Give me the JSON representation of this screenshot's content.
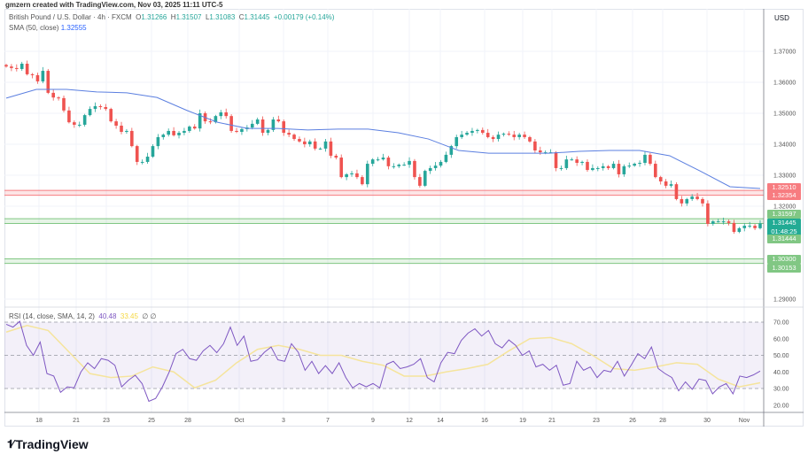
{
  "credit": "gmzern created with TradingView.com, Nov 03, 2025 11:11 UTC-5",
  "legend": {
    "symbol": "British Pound / U.S. Dollar · 4h · FXCM",
    "open_label": "O",
    "open": "1.31266",
    "high_label": "H",
    "high": "1.31507",
    "low_label": "L",
    "low": "1.31083",
    "close_label": "C",
    "close": "1.31445",
    "change": "+0.00179 (+0.14%)",
    "sma_label": "SMA (50, close)",
    "sma_value": "1.32555"
  },
  "rsi_legend": {
    "label": "RSI (14, close, SMA, 14, 2)",
    "rsi_value": "40.48",
    "ma_value": "33.45",
    "extra": "∅ ∅"
  },
  "currency": "USD",
  "price_tags": [
    {
      "text": "1.32510",
      "price": 1.3251,
      "color": "#f77c80"
    },
    {
      "text": "1.32354",
      "price": 1.32354,
      "color": "#f77c80"
    },
    {
      "text": "1.31597",
      "price": 1.31597,
      "color": "#81c784"
    },
    {
      "text": "1.31445",
      "price": 1.31445,
      "color": "#22ab94",
      "countdown": "01:48:25"
    },
    {
      "text": "1.31444",
      "price": 1.31444,
      "color": "#81c784"
    },
    {
      "text": "1.30300",
      "price": 1.303,
      "color": "#81c784"
    },
    {
      "text": "1.30153",
      "price": 1.30153,
      "color": "#81c784"
    }
  ],
  "footer": {
    "brand": "TradingView",
    "logo_mark": "17"
  },
  "colors": {
    "up": "#26a69a",
    "down": "#ef5350",
    "sma": "#5b7fe0",
    "rsi": "#7e57c2",
    "rsi_ma": "#f5e49c",
    "red_zone": "#f77c80",
    "green_zone": "#81c784"
  },
  "chart_data": [
    {
      "type": "candlestick",
      "title": "British Pound / U.S. Dollar · 4h · FXCM",
      "ylim": [
        1.287,
        1.375
      ],
      "yticks": [
        "1.37000",
        "1.36000",
        "1.35000",
        "1.34000",
        "1.33000",
        "1.32000",
        "1.29000"
      ],
      "ytick_values": [
        1.37,
        1.36,
        1.35,
        1.34,
        1.33,
        1.32,
        1.29
      ],
      "xtick_labels": [
        "18",
        "21",
        "23",
        "25",
        "28",
        "Oct",
        "3",
        "7",
        "9",
        "12",
        "14",
        "16",
        "19",
        "21",
        "23",
        "26",
        "28",
        "30",
        "Nov"
      ],
      "grid": true,
      "closes": [
        1.3651,
        1.3646,
        1.3643,
        1.366,
        1.3626,
        1.3623,
        1.3603,
        1.3637,
        1.3566,
        1.3551,
        1.3549,
        1.3509,
        1.3471,
        1.3463,
        1.3463,
        1.3494,
        1.3514,
        1.3523,
        1.352,
        1.3514,
        1.3474,
        1.346,
        1.344,
        1.3443,
        1.3394,
        1.3343,
        1.3343,
        1.336,
        1.3394,
        1.3423,
        1.3431,
        1.3443,
        1.3429,
        1.3437,
        1.3443,
        1.3457,
        1.3451,
        1.35,
        1.3474,
        1.3471,
        1.3491,
        1.3503,
        1.3491,
        1.3443,
        1.344,
        1.3449,
        1.3454,
        1.3466,
        1.348,
        1.3437,
        1.3446,
        1.348,
        1.3474,
        1.3437,
        1.3431,
        1.3417,
        1.3409,
        1.34,
        1.3409,
        1.3386,
        1.3386,
        1.3409,
        1.3363,
        1.3357,
        1.3294,
        1.3303,
        1.3306,
        1.3294,
        1.3271,
        1.3337,
        1.3351,
        1.3351,
        1.3357,
        1.3329,
        1.3329,
        1.3334,
        1.3334,
        1.3346,
        1.3294,
        1.3266,
        1.3314,
        1.3323,
        1.3331,
        1.3343,
        1.3366,
        1.3394,
        1.3423,
        1.3431,
        1.3437,
        1.3443,
        1.3446,
        1.3437,
        1.3423,
        1.3417,
        1.3431,
        1.3434,
        1.3431,
        1.3423,
        1.3431,
        1.3423,
        1.3409,
        1.338,
        1.3374,
        1.3374,
        1.3374,
        1.3323,
        1.3323,
        1.3351,
        1.3351,
        1.334,
        1.3343,
        1.3317,
        1.3323,
        1.3323,
        1.3329,
        1.3323,
        1.3337,
        1.3303,
        1.3329,
        1.3331,
        1.3337,
        1.334,
        1.3366,
        1.3337,
        1.3294,
        1.328,
        1.3266,
        1.3271,
        1.3223,
        1.3209,
        1.3223,
        1.3231,
        1.3223,
        1.3209,
        1.3143,
        1.3151,
        1.3151,
        1.3151,
        1.3146,
        1.3117,
        1.3129,
        1.3137,
        1.3137,
        1.3129,
        1.31445
      ],
      "sma": {
        "name": "SMA (50, close)",
        "values": [
          1.3549,
          1.3577,
          1.3577,
          1.3569,
          1.3566,
          1.3551,
          1.3509,
          1.3471,
          1.3451,
          1.3451,
          1.3446,
          1.3449,
          1.3449,
          1.3437,
          1.3417,
          1.338,
          1.3371,
          1.3371,
          1.3371,
          1.3377,
          1.338,
          1.338,
          1.3363,
          1.3314,
          1.3263,
          1.3257
        ]
      },
      "zones": [
        {
          "from": 1.32354,
          "to": 1.3251,
          "color": "#f77c80"
        },
        {
          "from": 1.31444,
          "to": 1.31597,
          "color": "#81c784"
        },
        {
          "from": 1.30153,
          "to": 1.303,
          "color": "#81c784"
        }
      ]
    },
    {
      "type": "line",
      "title": "RSI (14, close, SMA, 14, 2)",
      "ylim": [
        15,
        75
      ],
      "yticks": [
        "70.00",
        "60.00",
        "50.00",
        "40.00",
        "30.00",
        "20.00"
      ],
      "ytick_values": [
        70,
        60,
        50,
        40,
        30,
        20
      ],
      "bands": [
        30,
        50,
        70
      ],
      "series": [
        {
          "name": "RSI",
          "values": [
            68.7,
            67,
            70.5,
            56,
            50,
            58,
            39,
            37.5,
            27.7,
            31,
            30.4,
            40,
            45.5,
            42,
            48,
            47,
            44,
            31,
            35,
            38,
            33,
            22.3,
            24,
            31,
            40,
            51,
            53.6,
            48,
            47,
            52.7,
            56,
            51.6,
            57,
            67,
            56,
            61.6,
            46.4,
            47.3,
            51.8,
            55,
            47.3,
            46.4,
            57,
            51.8,
            41,
            46.4,
            39,
            43.8,
            39,
            45.5,
            36.6,
            30.4,
            33,
            31,
            33,
            30.4,
            44.6,
            46.4,
            42,
            43,
            44.6,
            48,
            36.6,
            34,
            45.5,
            51.8,
            51,
            59,
            63.4,
            66,
            61.6,
            65,
            57,
            54.5,
            59.3,
            56,
            50,
            52.7,
            43,
            44.6,
            41,
            44,
            32,
            33,
            46.4,
            41,
            43,
            36.6,
            41,
            40,
            46.4,
            37.5,
            44,
            51,
            48,
            55,
            42,
            39,
            36.6,
            28.6,
            34,
            29.5,
            35.7,
            34.8,
            26.8,
            31,
            33,
            26.8,
            37.5,
            36.6,
            38.2,
            40.48
          ]
        },
        {
          "name": "RSI-based MA",
          "values": [
            64,
            68,
            65,
            52,
            39,
            36.6,
            37.5,
            43,
            40,
            30.4,
            35,
            45.5,
            53.6,
            56,
            53.6,
            50,
            50,
            46.4,
            44,
            37.5,
            37.5,
            40,
            42,
            44.6,
            52.7,
            60,
            60.7,
            57,
            50,
            42,
            41,
            43,
            45.5,
            44.6,
            35.7,
            31,
            33.45
          ]
        }
      ]
    }
  ]
}
